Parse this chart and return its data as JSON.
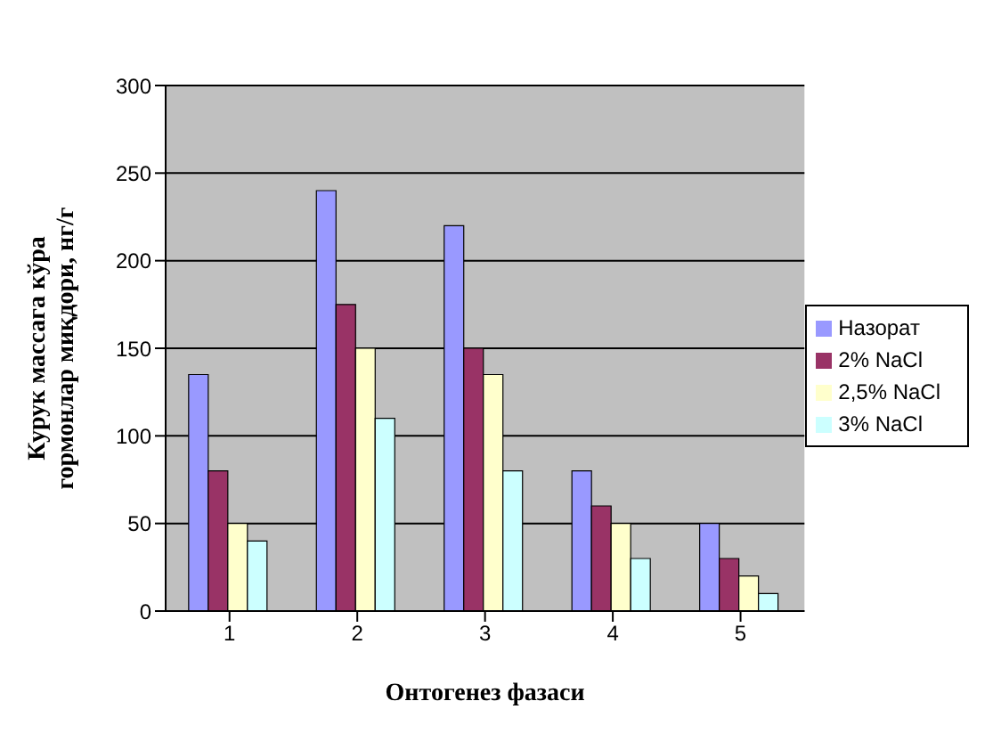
{
  "chart_data": {
    "type": "bar",
    "xlabel": "Онтогенез фазаси",
    "ylabel": "Курук массага кўра\nгормонлар миқдори, нг/г",
    "categories": [
      "1",
      "2",
      "3",
      "4",
      "5"
    ],
    "series": [
      {
        "name": "Назорат",
        "color": "#9999ff",
        "values": [
          135,
          240,
          220,
          80,
          50
        ]
      },
      {
        "name": "2% NaCl",
        "color": "#993366",
        "values": [
          80,
          175,
          150,
          60,
          30
        ]
      },
      {
        "name": "2,5% NaCl",
        "color": "#ffffcc",
        "values": [
          50,
          150,
          135,
          50,
          20
        ]
      },
      {
        "name": "3% NaCl",
        "color": "#ccffff",
        "values": [
          40,
          110,
          80,
          30,
          10
        ]
      }
    ],
    "ylim": [
      0,
      300
    ],
    "yticks": [
      0,
      50,
      100,
      150,
      200,
      250,
      300
    ],
    "grid": "y",
    "legend": "right"
  }
}
